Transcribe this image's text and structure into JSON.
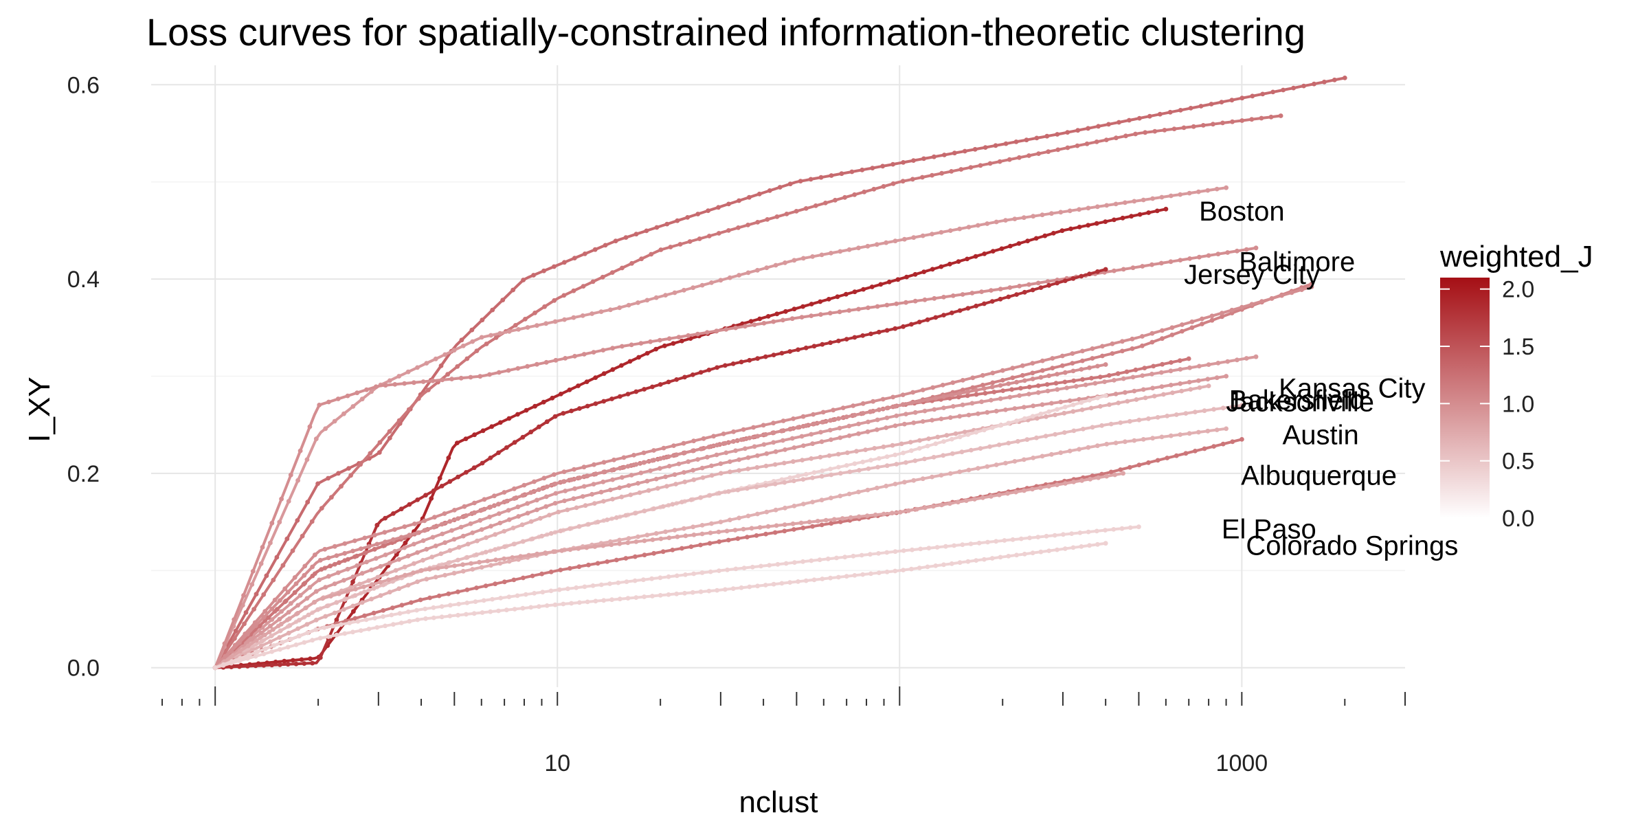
{
  "chart_data": {
    "type": "line",
    "title": "Loss curves for spatially-constrained information-theoretic clustering",
    "xlabel": "nclust",
    "ylabel": "I_XY",
    "x_scale": "log10",
    "xlim": [
      0.65,
      3000
    ],
    "ylim": [
      -0.02,
      0.62
    ],
    "x_ticks": [
      10,
      1000
    ],
    "x_tick_labels": [
      "10",
      "1000"
    ],
    "y_ticks": [
      0.0,
      0.2,
      0.4,
      0.6
    ],
    "y_tick_labels": [
      "0.0",
      "0.2",
      "0.4",
      "0.6"
    ],
    "grid": true,
    "legend": {
      "title": "weighted_J",
      "position": "right",
      "type": "colorbar",
      "range": [
        0,
        2.1
      ],
      "ticks": [
        0.0,
        0.5,
        1.0,
        1.5,
        2.0
      ],
      "tick_labels": [
        "0.0",
        "0.5",
        "1.0",
        "1.5",
        "2.0"
      ],
      "color_low": "#ffffff",
      "color_high": "#a50f15"
    },
    "series": [
      {
        "name": "",
        "weight": 1.3,
        "x_end": 2000,
        "anchors": [
          [
            1,
            0
          ],
          [
            2,
            0.19
          ],
          [
            3,
            0.22
          ],
          [
            5,
            0.33
          ],
          [
            8,
            0.4
          ],
          [
            15,
            0.44
          ],
          [
            50,
            0.5
          ],
          [
            300,
            0.55
          ],
          [
            2000,
            0.607
          ]
        ]
      },
      {
        "name": "",
        "weight": 1.2,
        "x_end": 1300,
        "anchors": [
          [
            1,
            0
          ],
          [
            2,
            0.16
          ],
          [
            4,
            0.28
          ],
          [
            6,
            0.33
          ],
          [
            10,
            0.38
          ],
          [
            20,
            0.43
          ],
          [
            100,
            0.5
          ],
          [
            500,
            0.55
          ],
          [
            1300,
            0.568
          ]
        ]
      },
      {
        "name": "",
        "weight": 0.9,
        "x_end": 900,
        "anchors": [
          [
            1,
            0
          ],
          [
            2,
            0.24
          ],
          [
            3,
            0.29
          ],
          [
            6,
            0.34
          ],
          [
            15,
            0.37
          ],
          [
            50,
            0.42
          ],
          [
            200,
            0.46
          ],
          [
            900,
            0.494
          ]
        ]
      },
      {
        "name": "Boston",
        "weight": 1.9,
        "x_end": 600,
        "anchors": [
          [
            1,
            0
          ],
          [
            2,
            0.01
          ],
          [
            4,
            0.15
          ],
          [
            5,
            0.23
          ],
          [
            10,
            0.28
          ],
          [
            20,
            0.33
          ],
          [
            100,
            0.4
          ],
          [
            300,
            0.45
          ],
          [
            600,
            0.472
          ]
        ]
      },
      {
        "name": "Baltimore",
        "weight": 1.0,
        "x_end": 1100,
        "anchors": [
          [
            1,
            0
          ],
          [
            2,
            0.27
          ],
          [
            3,
            0.29
          ],
          [
            6,
            0.3
          ],
          [
            15,
            0.33
          ],
          [
            50,
            0.36
          ],
          [
            200,
            0.39
          ],
          [
            1100,
            0.432
          ]
        ]
      },
      {
        "name": "Jersey City",
        "weight": 1.8,
        "x_end": 400,
        "anchors": [
          [
            1,
            0
          ],
          [
            2,
            0.005
          ],
          [
            3,
            0.15
          ],
          [
            6,
            0.21
          ],
          [
            10,
            0.26
          ],
          [
            30,
            0.31
          ],
          [
            100,
            0.35
          ],
          [
            400,
            0.41
          ]
        ]
      },
      {
        "name": "",
        "weight": 1.1,
        "x_end": 1600,
        "anchors": [
          [
            1,
            0
          ],
          [
            2,
            0.1
          ],
          [
            4,
            0.14
          ],
          [
            10,
            0.19
          ],
          [
            30,
            0.23
          ],
          [
            100,
            0.27
          ],
          [
            500,
            0.33
          ],
          [
            1600,
            0.395
          ]
        ]
      },
      {
        "name": "",
        "weight": 1.0,
        "x_end": 1600,
        "anchors": [
          [
            1,
            0
          ],
          [
            2,
            0.12
          ],
          [
            4,
            0.15
          ],
          [
            10,
            0.2
          ],
          [
            30,
            0.24
          ],
          [
            100,
            0.28
          ],
          [
            500,
            0.34
          ],
          [
            1600,
            0.392
          ]
        ]
      },
      {
        "name": "Kansas City",
        "weight": 0.9,
        "x_end": 1100,
        "anchors": [
          [
            1,
            0
          ],
          [
            2,
            0.09
          ],
          [
            4,
            0.13
          ],
          [
            10,
            0.18
          ],
          [
            30,
            0.22
          ],
          [
            100,
            0.26
          ],
          [
            500,
            0.3
          ],
          [
            1100,
            0.32
          ]
        ]
      },
      {
        "name": "Bakersfield",
        "weight": 1.2,
        "x_end": 700,
        "anchors": [
          [
            1,
            0
          ],
          [
            2,
            0.1
          ],
          [
            4,
            0.14
          ],
          [
            10,
            0.19
          ],
          [
            30,
            0.23
          ],
          [
            100,
            0.27
          ],
          [
            400,
            0.3
          ],
          [
            700,
            0.318
          ]
        ]
      },
      {
        "name": "Jacksonville",
        "weight": 0.9,
        "x_end": 900,
        "anchors": [
          [
            1,
            0
          ],
          [
            2,
            0.08
          ],
          [
            4,
            0.12
          ],
          [
            10,
            0.17
          ],
          [
            30,
            0.21
          ],
          [
            100,
            0.25
          ],
          [
            400,
            0.28
          ],
          [
            900,
            0.3
          ]
        ]
      },
      {
        "name": "",
        "weight": 1.0,
        "x_end": 400,
        "anchors": [
          [
            1,
            0
          ],
          [
            2,
            0.11
          ],
          [
            4,
            0.14
          ],
          [
            10,
            0.19
          ],
          [
            30,
            0.23
          ],
          [
            100,
            0.27
          ],
          [
            400,
            0.312
          ]
        ]
      },
      {
        "name": "",
        "weight": 0.7,
        "x_end": 800,
        "anchors": [
          [
            1,
            0
          ],
          [
            2,
            0.07
          ],
          [
            4,
            0.11
          ],
          [
            10,
            0.16
          ],
          [
            30,
            0.2
          ],
          [
            100,
            0.23
          ],
          [
            400,
            0.27
          ],
          [
            800,
            0.29
          ]
        ]
      },
      {
        "name": "",
        "weight": 0.4,
        "x_end": 400,
        "anchors": [
          [
            1,
            0
          ],
          [
            2,
            0.06
          ],
          [
            4,
            0.1
          ],
          [
            10,
            0.14
          ],
          [
            30,
            0.18
          ],
          [
            100,
            0.22
          ],
          [
            400,
            0.28
          ]
        ]
      },
      {
        "name": "",
        "weight": 0.6,
        "x_end": 1000,
        "anchors": [
          [
            1,
            0
          ],
          [
            2,
            0.06
          ],
          [
            4,
            0.1
          ],
          [
            10,
            0.14
          ],
          [
            30,
            0.18
          ],
          [
            100,
            0.21
          ],
          [
            400,
            0.25
          ],
          [
            1000,
            0.27
          ]
        ]
      },
      {
        "name": "Austin",
        "weight": 0.7,
        "x_end": 900,
        "anchors": [
          [
            1,
            0
          ],
          [
            2,
            0.05
          ],
          [
            4,
            0.09
          ],
          [
            10,
            0.12
          ],
          [
            30,
            0.15
          ],
          [
            100,
            0.19
          ],
          [
            400,
            0.23
          ],
          [
            900,
            0.246
          ]
        ]
      },
      {
        "name": "",
        "weight": 1.2,
        "x_end": 1000,
        "anchors": [
          [
            1,
            0
          ],
          [
            2,
            0.04
          ],
          [
            4,
            0.07
          ],
          [
            10,
            0.1
          ],
          [
            30,
            0.13
          ],
          [
            100,
            0.16
          ],
          [
            400,
            0.2
          ],
          [
            1000,
            0.235
          ]
        ]
      },
      {
        "name": "Albuquerque",
        "weight": 0.8,
        "x_end": 450,
        "anchors": [
          [
            1,
            0
          ],
          [
            2,
            0.07
          ],
          [
            4,
            0.1
          ],
          [
            10,
            0.12
          ],
          [
            30,
            0.14
          ],
          [
            100,
            0.16
          ],
          [
            450,
            0.2
          ]
        ]
      },
      {
        "name": "El Paso",
        "weight": 0.4,
        "x_end": 500,
        "anchors": [
          [
            1,
            0
          ],
          [
            2,
            0.04
          ],
          [
            4,
            0.06
          ],
          [
            10,
            0.08
          ],
          [
            30,
            0.1
          ],
          [
            100,
            0.12
          ],
          [
            500,
            0.145
          ]
        ]
      },
      {
        "name": "Colorado Springs",
        "weight": 0.4,
        "x_end": 400,
        "anchors": [
          [
            1,
            0
          ],
          [
            2,
            0.03
          ],
          [
            4,
            0.05
          ],
          [
            10,
            0.065
          ],
          [
            30,
            0.08
          ],
          [
            100,
            0.1
          ],
          [
            400,
            0.128
          ]
        ]
      }
    ],
    "labels": [
      {
        "text": "Boston",
        "x": 1000,
        "y": 0.47
      },
      {
        "text": "Baltimore",
        "x": 1450,
        "y": 0.418
      },
      {
        "text": "Jersey City",
        "x": 1070,
        "y": 0.405
      },
      {
        "text": "Kansas City",
        "x": 2100,
        "y": 0.288
      },
      {
        "text": "Bakersfield",
        "x": 1450,
        "y": 0.276
      },
      {
        "text": "Jacksonville",
        "x": 1480,
        "y": 0.274
      },
      {
        "text": "Austin",
        "x": 1700,
        "y": 0.24
      },
      {
        "text": "Albuquerque",
        "x": 1680,
        "y": 0.198
      },
      {
        "text": "El Paso",
        "x": 1200,
        "y": 0.143
      },
      {
        "text": "Colorado Springs",
        "x": 2100,
        "y": 0.126
      }
    ]
  }
}
